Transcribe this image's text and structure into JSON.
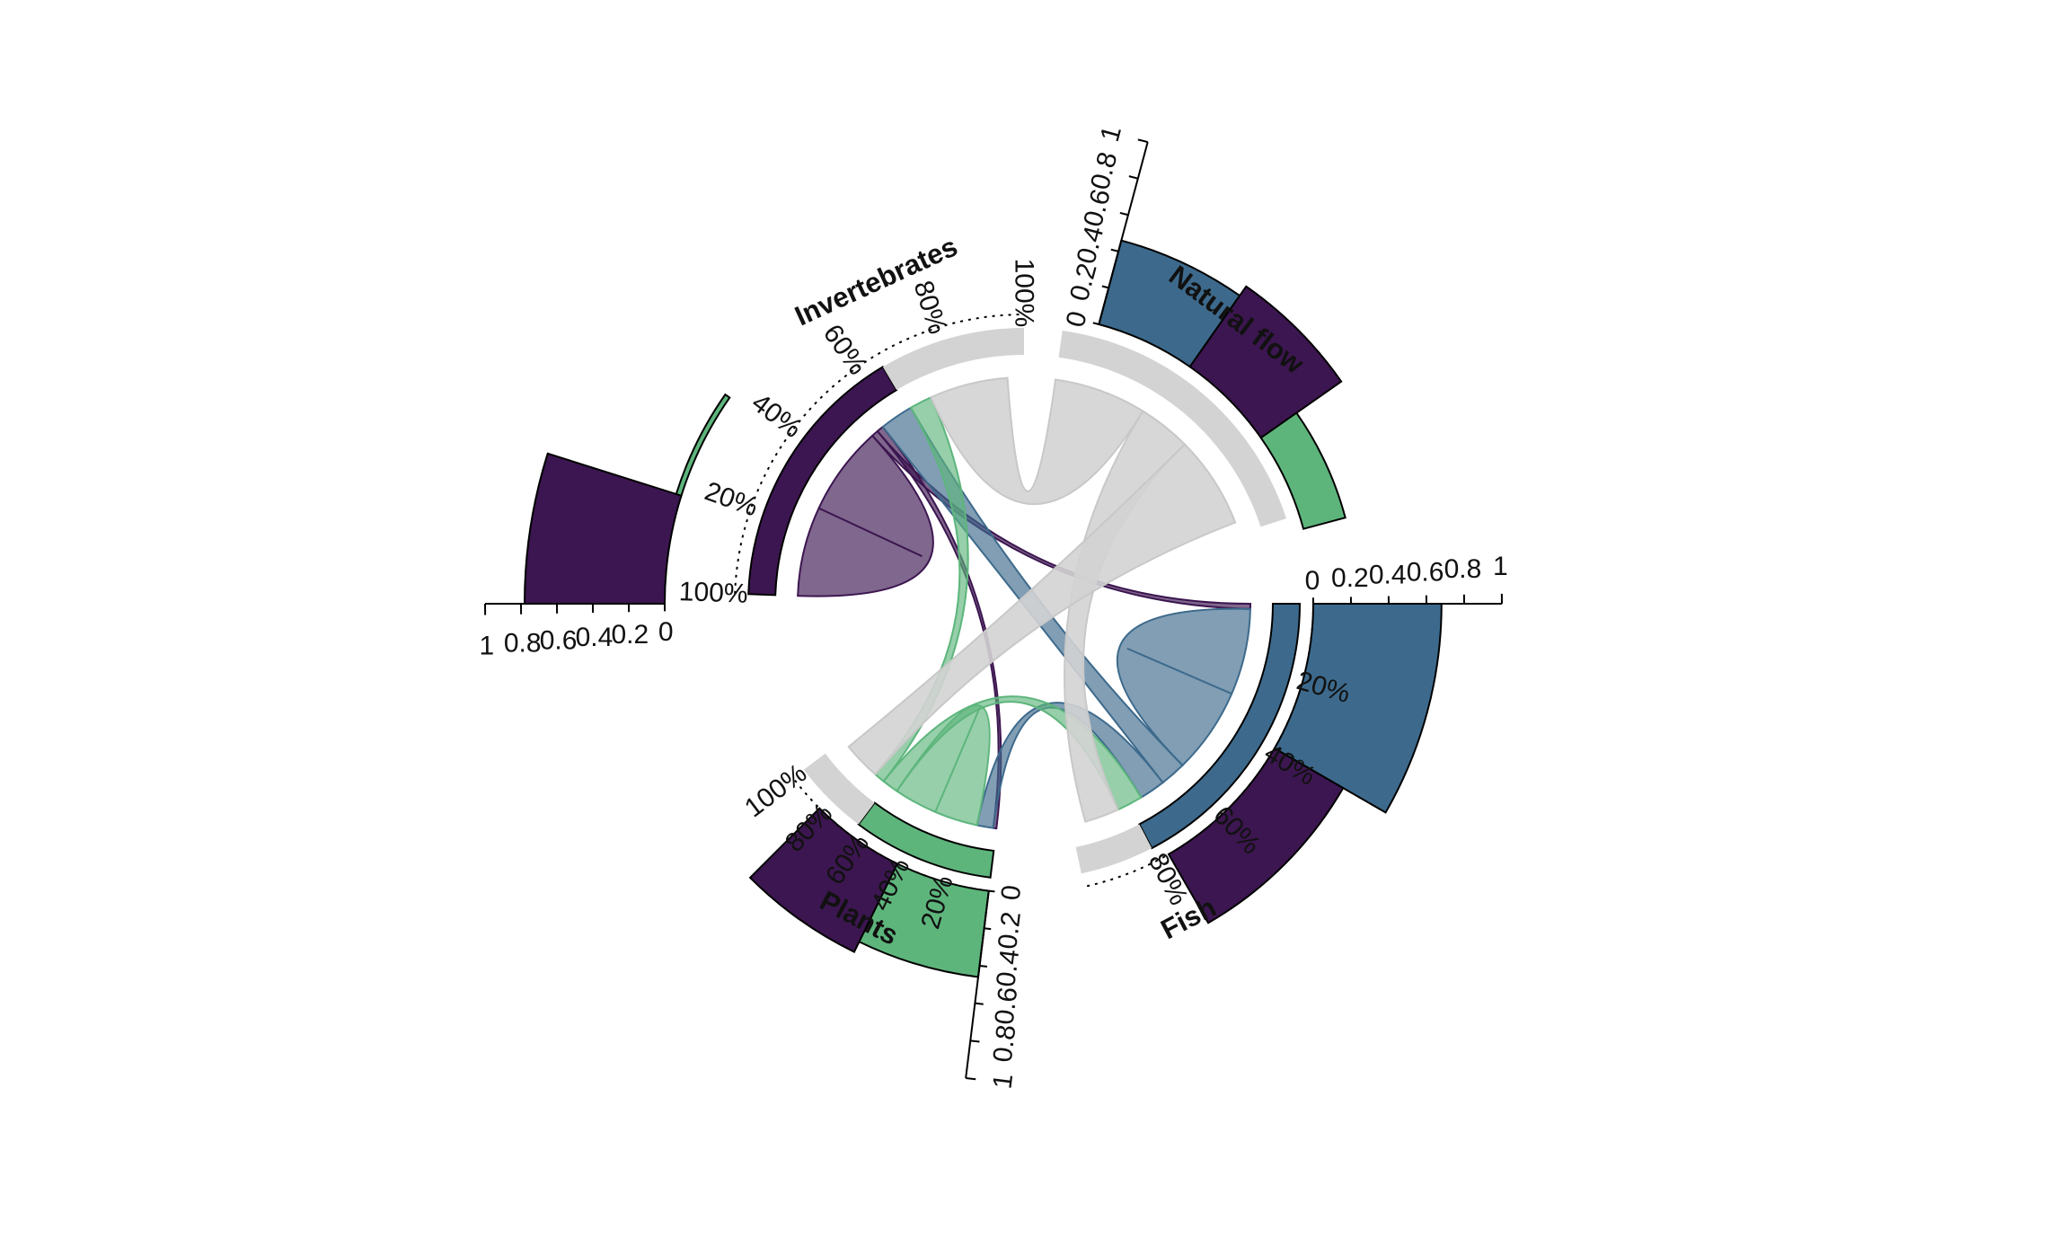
{
  "chart_data": {
    "type": "chord",
    "colors": {
      "fish": "#3d6a8c",
      "invertebrates": "#3c1650",
      "plants": "#5db57c",
      "natural_flow": "#d3d3d3",
      "stroke": "#000000"
    },
    "sectors": [
      {
        "id": "fish",
        "name": "Fish",
        "color_key": "fish",
        "pct_labels": [
          "20%",
          "40%",
          "60%",
          "80%"
        ],
        "composition": [
          {
            "group": "fish",
            "fraction": 0.8
          },
          {
            "group": "natural_flow",
            "fraction": 0.2
          }
        ],
        "bar_axis": {
          "ticks": [
            "0",
            "0.2",
            "0.4",
            "0.6",
            "0.8",
            "1"
          ]
        },
        "bars": [
          {
            "group": "fish",
            "value": 0.68
          },
          {
            "group": "invertebrates",
            "value": 0.42
          }
        ]
      },
      {
        "id": "plants",
        "name": "Plants",
        "color_key": "plants",
        "pct_labels": [
          "20%",
          "40%",
          "60%",
          "80%",
          "100%"
        ],
        "composition": [
          {
            "group": "plants",
            "fraction": 0.65
          },
          {
            "group": "natural_flow",
            "fraction": 0.35
          }
        ],
        "bar_axis": {
          "ticks": [
            "0",
            "0.2",
            "0.4",
            "0.6",
            "0.8",
            "1"
          ]
        },
        "bars": [
          {
            "group": "plants",
            "value": 0.46
          },
          {
            "group": "invertebrates",
            "value": 0.52
          }
        ]
      },
      {
        "id": "invertebrates",
        "name": "Invertebrates",
        "color_key": "invertebrates",
        "pct_labels": [
          "100%",
          "20%",
          "40%",
          "60%",
          "80%",
          "100%"
        ],
        "composition": [
          {
            "group": "invertebrates",
            "fraction": 0.65
          },
          {
            "group": "natural_flow",
            "fraction": 0.35
          }
        ],
        "bar_axis": {
          "ticks": [
            "0",
            "0.2",
            "0.4",
            "0.6",
            "0.8",
            "1"
          ]
        },
        "bars": [
          {
            "group": "invertebrates",
            "value": 0.78
          },
          {
            "group": "plants",
            "value": 0.03
          }
        ]
      },
      {
        "id": "natural_flow",
        "name": "Natural flow",
        "color_key": "natural_flow",
        "pct_labels": [],
        "composition": [
          {
            "group": "natural_flow",
            "fraction": 1.0
          }
        ],
        "bar_axis": {
          "ticks": [
            "0",
            "0.2",
            "0.4",
            "0.6",
            "0.8",
            "1"
          ]
        },
        "bars": [
          {
            "group": "fish",
            "value": 0.46
          },
          {
            "group": "invertebrates",
            "value": 0.52
          },
          {
            "group": "plants",
            "value": 0.23
          }
        ]
      }
    ],
    "links": [
      {
        "from": "invertebrates",
        "to": "invertebrates",
        "weight": 0.4
      },
      {
        "from": "invertebrates",
        "to": "fish",
        "weight": 0.03
      },
      {
        "from": "invertebrates",
        "to": "plants",
        "weight": 0.03
      },
      {
        "from": "fish",
        "to": "fish",
        "weight": 0.5
      },
      {
        "from": "fish",
        "to": "invertebrates",
        "weight": 0.15
      },
      {
        "from": "fish",
        "to": "plants",
        "weight": 0.15
      },
      {
        "from": "plants",
        "to": "plants",
        "weight": 0.4
      },
      {
        "from": "plants",
        "to": "fish",
        "weight": 0.15
      },
      {
        "from": "plants",
        "to": "invertebrates",
        "weight": 0.1
      },
      {
        "from": "natural_flow",
        "to": "invertebrates",
        "weight": 0.35
      },
      {
        "from": "natural_flow",
        "to": "fish",
        "weight": 0.2
      },
      {
        "from": "natural_flow",
        "to": "plants",
        "weight": 0.35
      }
    ]
  }
}
